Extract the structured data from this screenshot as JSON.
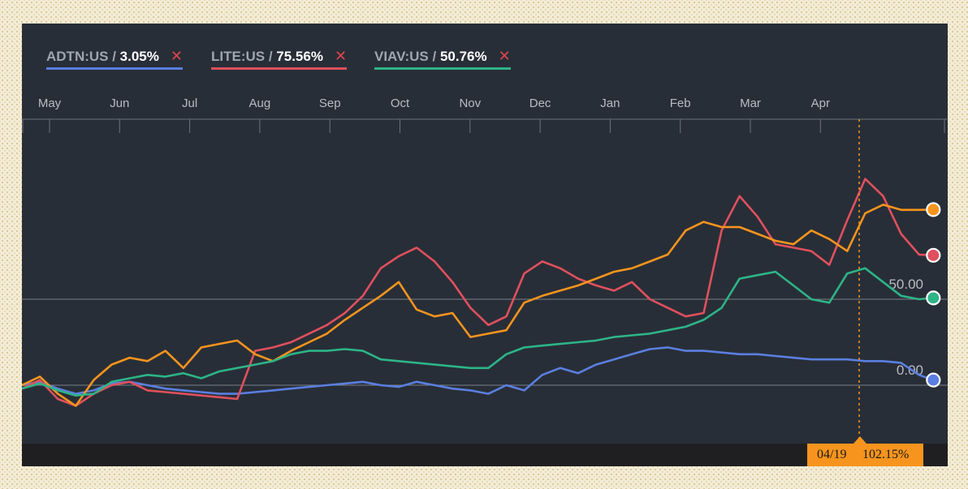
{
  "legend": [
    {
      "symbol": "ADTN:US",
      "sep": " / ",
      "change": "3.05%",
      "color": "#5b7fe0",
      "close_icon": "close-icon"
    },
    {
      "symbol": "LITE:US",
      "sep": " / ",
      "change": "75.56%",
      "color": "#e0505e",
      "close_icon": "close-icon"
    },
    {
      "symbol": "VIAV:US",
      "sep": " / ",
      "change": "50.76%",
      "color": "#2db487",
      "close_icon": "close-icon"
    }
  ],
  "hover": {
    "date": "04/19",
    "value": "102.15%",
    "color": "#f7941d"
  },
  "chart_data": {
    "type": "line",
    "x_ticks": [
      "May",
      "Jun",
      "Jul",
      "Aug",
      "Sep",
      "Oct",
      "Nov",
      "Dec",
      "Jan",
      "Feb",
      "Mar",
      "Apr"
    ],
    "y_tick_labels": [
      "50.00",
      "0.00"
    ],
    "y_ticks": [
      50,
      0
    ],
    "xlim": [
      0,
      51.6
    ],
    "ylim": [
      -35,
      150
    ],
    "grid": "horizontal at 0 and 50",
    "series": [
      {
        "name": "ADTN:US",
        "color": "#5b7fe0",
        "x": [
          0,
          1,
          2,
          3,
          4,
          5,
          6,
          7,
          8,
          9,
          10,
          11,
          12,
          13,
          14,
          15,
          16,
          17,
          18,
          19,
          20,
          21,
          22,
          23,
          24,
          25,
          26,
          27,
          28,
          29,
          30,
          31,
          32,
          33,
          34,
          35,
          36,
          37,
          38,
          39,
          40,
          41,
          42,
          43,
          44,
          45,
          46,
          47,
          48,
          49,
          50,
          50.8
        ],
        "y": [
          0,
          2,
          -2,
          -5,
          -3,
          1,
          2,
          0,
          -2,
          -3,
          -4,
          -5,
          -5,
          -4,
          -3,
          -2,
          -1,
          0,
          1,
          2,
          0,
          -1,
          2,
          0,
          -2,
          -3,
          -5,
          0,
          -3,
          6,
          10,
          7,
          12,
          15,
          18,
          21,
          22,
          20,
          20,
          19,
          18,
          18,
          17,
          16,
          15,
          15,
          15,
          14,
          14,
          13,
          6,
          3
        ]
      },
      {
        "name": "LITE:US",
        "color": "#e0505e",
        "x": [
          0,
          1,
          2,
          3,
          4,
          5,
          6,
          7,
          8,
          9,
          10,
          11,
          12,
          13,
          14,
          15,
          16,
          17,
          18,
          19,
          20,
          21,
          22,
          23,
          24,
          25,
          26,
          27,
          28,
          29,
          30,
          31,
          32,
          33,
          34,
          35,
          36,
          37,
          38,
          39,
          40,
          41,
          42,
          43,
          44,
          45,
          46,
          47,
          48,
          49,
          50,
          50.8
        ],
        "y": [
          -2,
          3,
          -8,
          -12,
          -5,
          0,
          2,
          -3,
          -4,
          -5,
          -6,
          -7,
          -8,
          20,
          22,
          25,
          30,
          35,
          42,
          52,
          68,
          75,
          80,
          72,
          60,
          45,
          35,
          40,
          65,
          72,
          68,
          62,
          58,
          55,
          60,
          50,
          45,
          40,
          42,
          90,
          110,
          98,
          82,
          80,
          78,
          70,
          96,
          120,
          110,
          88,
          76,
          75.56
        ]
      },
      {
        "name": "VIAV:US",
        "color": "#2db487",
        "x": [
          0,
          1,
          2,
          3,
          4,
          5,
          6,
          7,
          8,
          9,
          10,
          11,
          12,
          13,
          14,
          15,
          16,
          17,
          18,
          19,
          20,
          21,
          22,
          23,
          24,
          25,
          26,
          27,
          28,
          29,
          30,
          31,
          32,
          33,
          34,
          35,
          36,
          37,
          38,
          39,
          40,
          41,
          42,
          43,
          44,
          45,
          46,
          47,
          48,
          49,
          50,
          50.8
        ],
        "y": [
          -2,
          1,
          -3,
          -6,
          -5,
          2,
          4,
          6,
          5,
          7,
          4,
          8,
          10,
          12,
          14,
          18,
          20,
          20,
          21,
          20,
          15,
          14,
          13,
          12,
          11,
          10,
          10,
          18,
          22,
          23,
          24,
          25,
          26,
          28,
          29,
          30,
          32,
          34,
          38,
          45,
          62,
          64,
          66,
          58,
          50,
          48,
          65,
          68,
          60,
          52,
          50,
          50.76
        ]
      },
      {
        "name": "",
        "color": "#f7941d",
        "x": [
          0,
          1,
          2,
          3,
          4,
          5,
          6,
          7,
          8,
          9,
          10,
          11,
          12,
          13,
          14,
          15,
          16,
          17,
          18,
          19,
          20,
          21,
          22,
          23,
          24,
          25,
          26,
          27,
          28,
          29,
          30,
          31,
          32,
          33,
          34,
          35,
          36,
          37,
          38,
          39,
          40,
          41,
          42,
          43,
          44,
          45,
          46,
          47,
          48,
          49,
          50,
          50.8
        ],
        "y": [
          0,
          5,
          -5,
          -12,
          3,
          12,
          16,
          14,
          20,
          10,
          22,
          24,
          26,
          18,
          14,
          20,
          25,
          30,
          38,
          45,
          52,
          60,
          44,
          40,
          42,
          28,
          30,
          32,
          48,
          52,
          55,
          58,
          62,
          66,
          68,
          72,
          76,
          90,
          95,
          92,
          92,
          88,
          84,
          82,
          90,
          85,
          78,
          100,
          105,
          102,
          102,
          102.15
        ]
      }
    ]
  }
}
